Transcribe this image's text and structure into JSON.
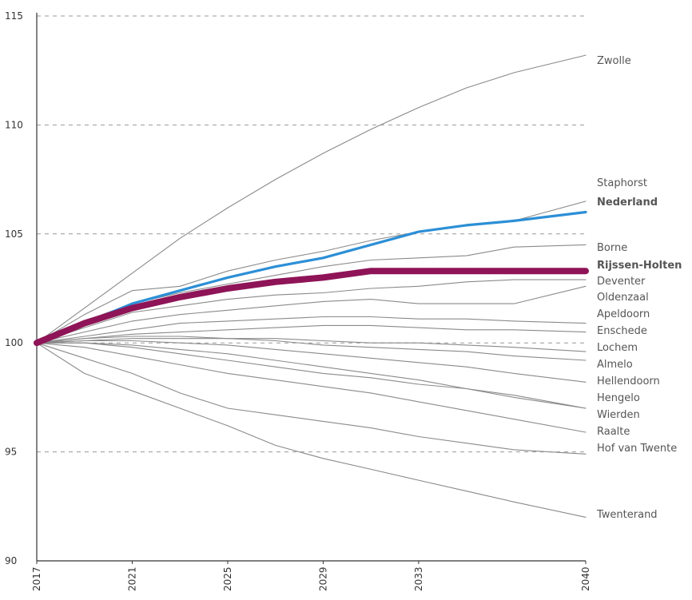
{
  "chart_data": {
    "type": "line",
    "title": "",
    "xlabel": "",
    "ylabel": "",
    "xlim": [
      2017,
      2040
    ],
    "ylim": [
      90,
      115
    ],
    "yticks": [
      90,
      95,
      100,
      105,
      110,
      115
    ],
    "xticks": [
      2017,
      2021,
      2025,
      2029,
      2033,
      2040
    ],
    "x": [
      2017,
      2019,
      2021,
      2023,
      2025,
      2027,
      2029,
      2031,
      2033,
      2035,
      2037,
      2040
    ],
    "grid": "horizontal dashed",
    "legend": "labels at line ends (right)",
    "colors": {
      "default": "#8a8a8a",
      "nederland": "#2c8fd6",
      "rijssen": "#8e1457"
    },
    "series": [
      {
        "name": "Zwolle",
        "values": [
          100,
          101.6,
          103.2,
          104.8,
          106.2,
          107.5,
          108.7,
          109.8,
          110.8,
          111.7,
          112.4,
          113.2
        ]
      },
      {
        "name": "Staphorst",
        "values": [
          100,
          101.3,
          102.4,
          102.6,
          103.3,
          103.8,
          104.2,
          104.7,
          105.1,
          105.4,
          105.6,
          106.5
        ]
      },
      {
        "name": "Nederland",
        "values": [
          100,
          100.9,
          101.8,
          102.4,
          103.0,
          103.5,
          103.9,
          104.5,
          105.1,
          105.4,
          105.6,
          106.0
        ]
      },
      {
        "name": "Borne",
        "values": [
          100,
          101.0,
          101.8,
          102.3,
          102.7,
          103.1,
          103.5,
          103.8,
          103.9,
          104.0,
          104.4,
          104.5
        ]
      },
      {
        "name": "Rijssen-Holten",
        "values": [
          100,
          100.9,
          101.6,
          102.1,
          102.5,
          102.8,
          103.0,
          103.3,
          103.3,
          103.3,
          103.3,
          103.3
        ]
      },
      {
        "name": "Deventer",
        "values": [
          100,
          100.7,
          101.4,
          101.7,
          102.0,
          102.2,
          102.3,
          102.5,
          102.6,
          102.8,
          102.9,
          102.9
        ]
      },
      {
        "name": "Oldenzaal",
        "values": [
          100,
          100.5,
          101.0,
          101.3,
          101.5,
          101.7,
          101.9,
          102.0,
          101.8,
          101.8,
          101.8,
          102.6
        ]
      },
      {
        "name": "Apeldoorn",
        "values": [
          100,
          100.3,
          100.6,
          100.9,
          101.0,
          101.1,
          101.2,
          101.2,
          101.1,
          101.1,
          101.0,
          100.9
        ]
      },
      {
        "name": "Enschede",
        "values": [
          100,
          100.2,
          100.4,
          100.5,
          100.6,
          100.7,
          100.8,
          100.8,
          100.7,
          100.6,
          100.6,
          100.5
        ]
      },
      {
        "name": "Lochem",
        "values": [
          100,
          100.1,
          100.2,
          100.2,
          100.2,
          100.2,
          100.1,
          100.0,
          100.0,
          99.9,
          99.8,
          99.6
        ]
      },
      {
        "name": "Almelo",
        "values": [
          100,
          100.2,
          100.3,
          100.3,
          100.2,
          100.1,
          99.9,
          99.8,
          99.7,
          99.6,
          99.4,
          99.2
        ]
      },
      {
        "name": "Hellendoorn",
        "values": [
          100,
          100.1,
          100.1,
          100.0,
          99.9,
          99.7,
          99.5,
          99.3,
          99.1,
          98.9,
          98.6,
          98.2
        ]
      },
      {
        "name": "Hengelo",
        "values": [
          100,
          100.0,
          99.9,
          99.7,
          99.5,
          99.2,
          98.9,
          98.6,
          98.3,
          97.9,
          97.5,
          97.0
        ]
      },
      {
        "name": "Wierden",
        "values": [
          100,
          100.0,
          99.8,
          99.5,
          99.2,
          98.9,
          98.6,
          98.4,
          98.1,
          97.9,
          97.6,
          97.0
        ]
      },
      {
        "name": "Raalte",
        "values": [
          100,
          99.8,
          99.4,
          99.0,
          98.6,
          98.3,
          98.0,
          97.7,
          97.3,
          96.9,
          96.5,
          95.9
        ]
      },
      {
        "name": "Hof van Twente",
        "values": [
          100,
          99.3,
          98.6,
          97.7,
          97.0,
          96.7,
          96.4,
          96.1,
          95.7,
          95.4,
          95.1,
          94.9
        ]
      },
      {
        "name": "Twenterand",
        "values": [
          100,
          98.6,
          97.8,
          97.0,
          96.2,
          95.3,
          94.7,
          94.2,
          93.7,
          93.2,
          92.7,
          92.0
        ]
      }
    ]
  }
}
